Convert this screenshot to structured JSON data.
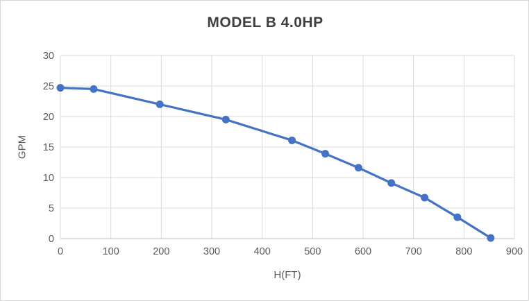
{
  "chart_data": {
    "type": "line",
    "title": "MODEL B 4.0HP",
    "xlabel": "H(FT)",
    "ylabel": "GPM",
    "x": [
      0,
      66,
      197,
      328,
      459,
      525,
      591,
      656,
      722,
      787,
      853
    ],
    "y": [
      24.7,
      24.5,
      22.0,
      19.5,
      16.1,
      13.9,
      11.6,
      9.1,
      6.7,
      3.5,
      0.1
    ],
    "xlim": [
      0,
      900
    ],
    "ylim": [
      0,
      30
    ],
    "x_ticks": [
      0,
      100,
      200,
      300,
      400,
      500,
      600,
      700,
      800,
      900
    ],
    "x_tick_labels": [
      "0",
      "100",
      "200",
      "300",
      "400",
      "500",
      "600",
      "700",
      "800",
      "900"
    ],
    "y_ticks": [
      0,
      5,
      10,
      15,
      20,
      25,
      30
    ],
    "y_tick_labels": [
      "0",
      "5",
      "10",
      "15",
      "20",
      "25",
      "30"
    ],
    "grid": true,
    "legend": "none",
    "marker": "circle",
    "colors": {
      "series": "#4472C4",
      "gridline": "#d9d9d9",
      "axis_line": "#bfbfbf",
      "tick_text": "#595959",
      "title_text": "#3f3f3f",
      "background": "#ffffff",
      "border": "#d6d6d6"
    }
  }
}
